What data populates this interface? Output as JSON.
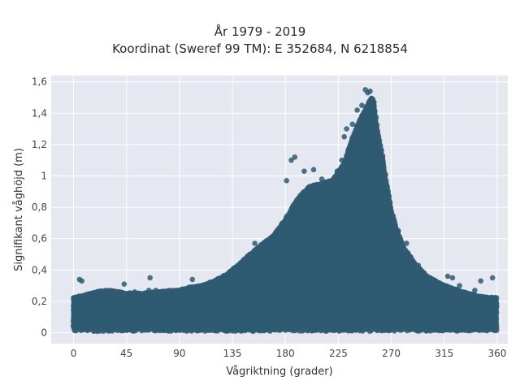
{
  "chart_data": {
    "type": "scatter",
    "title": "År 1979 - 2019",
    "subtitle": "Koordinat (Sweref 99 TM): E 352684, N 6218854",
    "xlabel": "Vågriktning (grader)",
    "ylabel": "Signifikant våghöjd (m)",
    "xlim": [
      -19,
      369
    ],
    "ylim": [
      -0.07,
      1.64
    ],
    "x_ticks": [
      0,
      45,
      90,
      135,
      180,
      225,
      270,
      315,
      360
    ],
    "x_tick_labels": [
      "0",
      "45",
      "90",
      "135",
      "180",
      "225",
      "270",
      "315",
      "360"
    ],
    "y_ticks": [
      0,
      0.2,
      0.4,
      0.6,
      0.8,
      1,
      1.2,
      1.4,
      1.6
    ],
    "y_tick_labels": [
      "0",
      "0,2",
      "0,4",
      "0,6",
      "0,8",
      "1",
      "1,2",
      "1,4",
      "1,6"
    ],
    "grid": true,
    "marker_color": "#2f5a72",
    "background_color": "#e5e8f0",
    "envelope": {
      "x": [
        0,
        10,
        20,
        30,
        45,
        60,
        75,
        90,
        100,
        110,
        120,
        130,
        140,
        150,
        160,
        170,
        180,
        190,
        200,
        210,
        220,
        230,
        235,
        240,
        245,
        250,
        253,
        255,
        258,
        262,
        265,
        270,
        275,
        280,
        290,
        300,
        315,
        330,
        345,
        360
      ],
      "y_max": [
        0.22,
        0.24,
        0.26,
        0.27,
        0.25,
        0.25,
        0.26,
        0.27,
        0.29,
        0.3,
        0.33,
        0.37,
        0.43,
        0.5,
        0.56,
        0.62,
        0.72,
        0.85,
        0.93,
        0.95,
        0.97,
        1.08,
        1.2,
        1.3,
        1.38,
        1.45,
        1.5,
        1.48,
        1.3,
        1.15,
        1.0,
        0.78,
        0.65,
        0.55,
        0.44,
        0.36,
        0.3,
        0.26,
        0.23,
        0.22
      ]
    },
    "sample_points": [
      {
        "x": 5,
        "y": 0.34
      },
      {
        "x": 7,
        "y": 0.33
      },
      {
        "x": 22,
        "y": 0.24
      },
      {
        "x": 26,
        "y": 0.25
      },
      {
        "x": 38,
        "y": 0.26
      },
      {
        "x": 43,
        "y": 0.31
      },
      {
        "x": 52,
        "y": 0.26
      },
      {
        "x": 64,
        "y": 0.27
      },
      {
        "x": 65,
        "y": 0.35
      },
      {
        "x": 70,
        "y": 0.27
      },
      {
        "x": 81,
        "y": 0.27
      },
      {
        "x": 90,
        "y": 0.27
      },
      {
        "x": 101,
        "y": 0.34
      },
      {
        "x": 108,
        "y": 0.29
      },
      {
        "x": 118,
        "y": 0.31
      },
      {
        "x": 124,
        "y": 0.34
      },
      {
        "x": 134,
        "y": 0.39
      },
      {
        "x": 141,
        "y": 0.42
      },
      {
        "x": 151,
        "y": 0.5
      },
      {
        "x": 154,
        "y": 0.57
      },
      {
        "x": 164,
        "y": 0.56
      },
      {
        "x": 185,
        "y": 1.1
      },
      {
        "x": 188,
        "y": 1.12
      },
      {
        "x": 181,
        "y": 0.97
      },
      {
        "x": 196,
        "y": 1.03
      },
      {
        "x": 204,
        "y": 1.04
      },
      {
        "x": 211,
        "y": 0.98
      },
      {
        "x": 224,
        "y": 1.03
      },
      {
        "x": 228,
        "y": 1.1
      },
      {
        "x": 230,
        "y": 1.25
      },
      {
        "x": 232,
        "y": 1.3
      },
      {
        "x": 237,
        "y": 1.33
      },
      {
        "x": 241,
        "y": 1.42
      },
      {
        "x": 245,
        "y": 1.45
      },
      {
        "x": 248,
        "y": 1.55
      },
      {
        "x": 250,
        "y": 1.53
      },
      {
        "x": 252,
        "y": 1.54
      },
      {
        "x": 254,
        "y": 1.47
      },
      {
        "x": 259,
        "y": 1.21
      },
      {
        "x": 262,
        "y": 1.1
      },
      {
        "x": 268,
        "y": 0.82
      },
      {
        "x": 276,
        "y": 0.65
      },
      {
        "x": 283,
        "y": 0.57
      },
      {
        "x": 293,
        "y": 0.43
      },
      {
        "x": 298,
        "y": 0.38
      },
      {
        "x": 305,
        "y": 0.33
      },
      {
        "x": 318,
        "y": 0.36
      },
      {
        "x": 322,
        "y": 0.35
      },
      {
        "x": 328,
        "y": 0.3
      },
      {
        "x": 341,
        "y": 0.27
      },
      {
        "x": 346,
        "y": 0.33
      },
      {
        "x": 356,
        "y": 0.35
      }
    ]
  }
}
